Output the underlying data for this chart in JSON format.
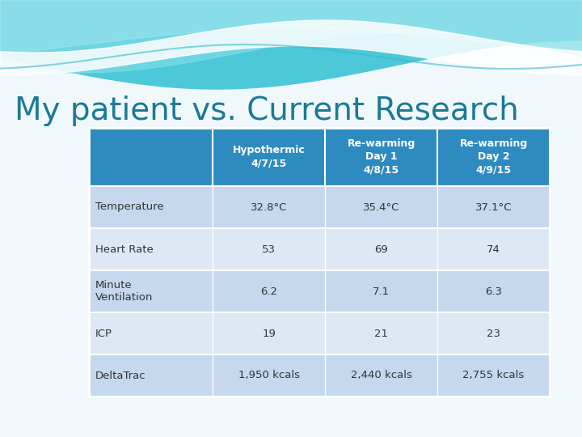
{
  "title": "My patient vs. Current Research",
  "title_color": "#1a7a96",
  "title_fontsize": 28,
  "header_bg_color": "#2e8bc0",
  "header_text_color": "#ffffff",
  "row_bg_color_1": "#dce9f5",
  "row_bg_color_2": "#c5d8ee",
  "row_text_color": "#333333",
  "col_headers": [
    "",
    "Hypothermic\n4/7/15",
    "Re-warming\nDay 1\n4/8/15",
    "Re-warming\nDay 2\n4/9/15"
  ],
  "rows": [
    [
      "Temperature",
      "32.8°C",
      "35.4°C",
      "37.1°C"
    ],
    [
      "Heart Rate",
      "53",
      "69",
      "74"
    ],
    [
      "Minute\nVentilation",
      "6.2",
      "7.1",
      "6.3"
    ],
    [
      "ICP",
      "19",
      "21",
      "23"
    ],
    [
      "DeltaTrac",
      "1,950 kcals",
      "2,440 kcals",
      "2,755 kcals"
    ]
  ],
  "bg_color": "#f0f8fc",
  "wave_color1": "#4dc8d8",
  "wave_color2": "#7ddce8",
  "wave_color3": "#b0eaf2",
  "wave_white": "#f5fbfd"
}
